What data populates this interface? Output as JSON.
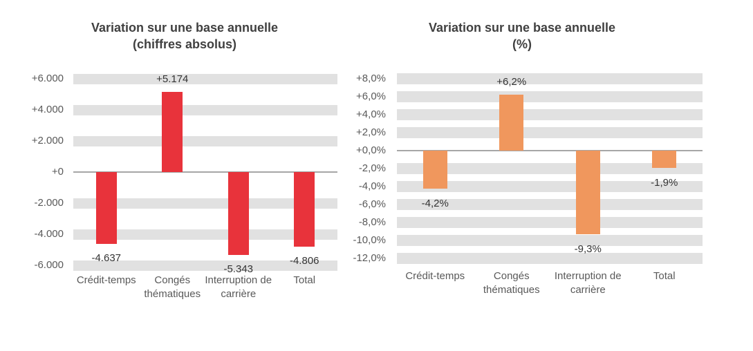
{
  "chart_data": [
    {
      "type": "bar",
      "title": "Variation sur une base annuelle\n(chiffres absolus)",
      "categories": [
        "Crédit-temps",
        "Congés thématiques",
        "Interruption de carrière",
        "Total"
      ],
      "values": [
        -4637,
        5174,
        -5343,
        -4806
      ],
      "data_labels": [
        "-4.637",
        "+5.174",
        "-5.343",
        "-4.806"
      ],
      "bar_color": "#e8333b",
      "xlabel": "",
      "ylabel": "",
      "ylim": [
        -6000,
        6000
      ],
      "grid": "horizontal-bands",
      "legend": "none",
      "y_ticks": [
        {
          "value": 6000,
          "label": "+6.000"
        },
        {
          "value": 4000,
          "label": "+4.000"
        },
        {
          "value": 2000,
          "label": "+2.000"
        },
        {
          "value": 0,
          "label": "+0"
        },
        {
          "value": -2000,
          "label": "-2.000"
        },
        {
          "value": -4000,
          "label": "-4.000"
        },
        {
          "value": -6000,
          "label": "-6.000"
        }
      ]
    },
    {
      "type": "bar",
      "title": "Variation sur une base annuelle\n(%)",
      "categories": [
        "Crédit-temps",
        "Congés thématiques",
        "Interruption de carrière",
        "Total"
      ],
      "values": [
        -4.2,
        6.2,
        -9.3,
        -1.9
      ],
      "data_labels": [
        "-4,2%",
        "+6,2%",
        "-9,3%",
        "-1,9%"
      ],
      "bar_color": "#f0975d",
      "xlabel": "",
      "ylabel": "",
      "ylim": [
        -12,
        8
      ],
      "grid": "horizontal-bands",
      "legend": "none",
      "y_ticks": [
        {
          "value": 8,
          "label": "+8,0%"
        },
        {
          "value": 6,
          "label": "+6,0%"
        },
        {
          "value": 4,
          "label": "+4,0%"
        },
        {
          "value": 2,
          "label": "+2,0%"
        },
        {
          "value": 0,
          "label": "+0,0%"
        },
        {
          "value": -2,
          "label": "-2,0%"
        },
        {
          "value": -4,
          "label": "-4,0%"
        },
        {
          "value": -6,
          "label": "-6,0%"
        },
        {
          "value": -8,
          "label": "-8,0%"
        },
        {
          "value": -10,
          "label": "-10,0%"
        },
        {
          "value": -12,
          "label": "-12,0%"
        }
      ]
    }
  ],
  "colors": {
    "band_gray": "#e1e1e1",
    "axis_line": "#a6a6a6",
    "tick_text": "#595959",
    "title_text": "#404040",
    "data_label_text": "#333333",
    "bar_red": "#e8333b",
    "bar_orange": "#f0975d"
  }
}
